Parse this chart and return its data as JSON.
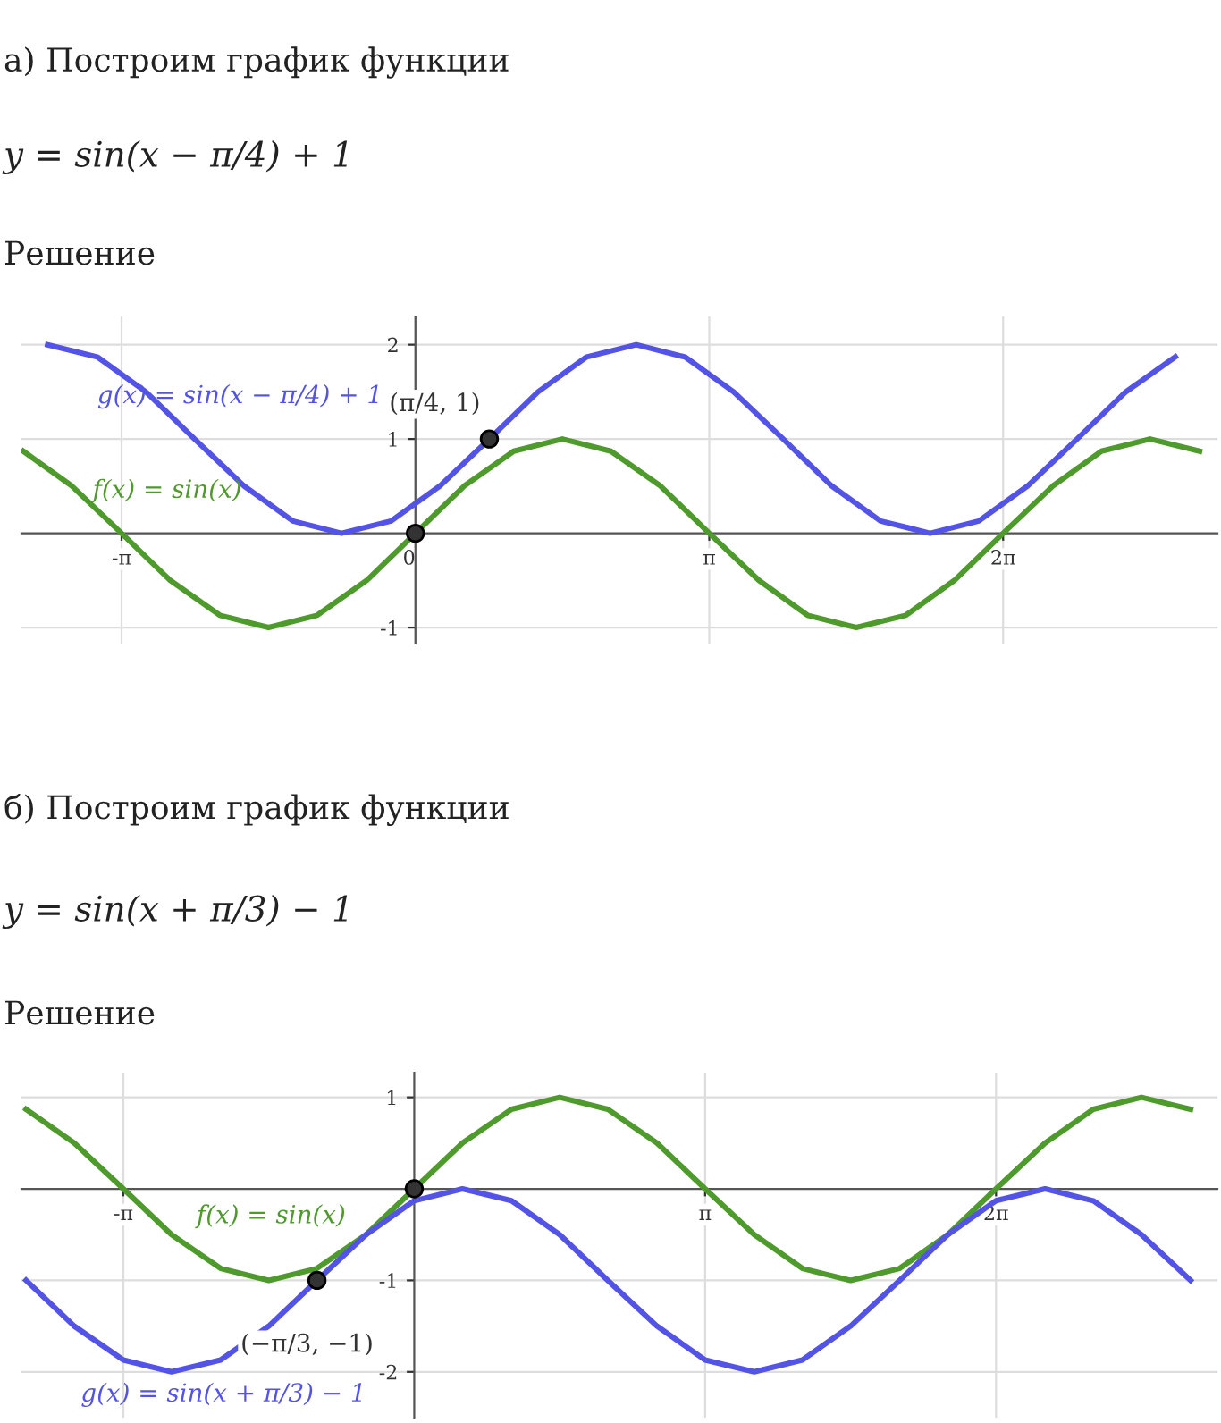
{
  "chart_data": [
    {
      "type": "line",
      "title": "а) Построим график функции",
      "subtitle": "y = sin(x − π/4) + 1",
      "annotations": [
        "Решение",
        {
          "text": "(π/4, 1)",
          "x": 0.79,
          "y": 1
        }
      ],
      "xlim": [
        -4.21,
        8.57
      ],
      "ylim": [
        -1.17,
        2.3
      ],
      "xticks": [
        {
          "value": -3.14,
          "label": "-π"
        },
        {
          "value": 0,
          "label": "0"
        },
        {
          "value": 3.14,
          "label": "π"
        },
        {
          "value": 6.28,
          "label": "2π"
        }
      ],
      "yticks": [
        -1,
        1,
        2
      ],
      "grid": true,
      "line_style": "solid",
      "series": [
        {
          "name": "g(x) = sin(x − π/4) + 1",
          "color": "#5353e6",
          "x": [
            -3.93,
            -3.4,
            -2.88,
            -2.36,
            -1.83,
            -1.31,
            -0.79,
            -0.26,
            0.26,
            0.79,
            1.31,
            1.83,
            2.36,
            2.88,
            3.4,
            3.93,
            4.45,
            4.97,
            5.5,
            6.02,
            6.54,
            7.07,
            7.59,
            8.12
          ],
          "values": [
            2,
            1.87,
            1.5,
            1,
            0.5,
            0.13,
            0,
            0.13,
            0.5,
            1,
            1.5,
            1.87,
            2,
            1.87,
            1.5,
            1,
            0.5,
            0.13,
            0,
            0.13,
            0.5,
            1,
            1.5,
            1.87
          ]
        },
        {
          "name": "f(x) = sin(x)",
          "color": "#4f9a2c",
          "x": [
            -4.19,
            -3.67,
            -3.14,
            -2.62,
            -2.09,
            -1.57,
            -1.05,
            -0.52,
            0,
            0.52,
            1.05,
            1.57,
            2.09,
            2.62,
            3.14,
            3.67,
            4.19,
            4.71,
            5.24,
            5.76,
            6.28,
            6.81,
            7.33,
            7.85,
            8.38
          ],
          "values": [
            0.87,
            0.5,
            0,
            -0.5,
            -0.87,
            -1,
            -0.87,
            -0.5,
            0,
            0.5,
            0.87,
            1,
            0.87,
            0.5,
            0,
            -0.5,
            -0.87,
            -1,
            -0.87,
            -0.5,
            0,
            0.5,
            0.87,
            1,
            0.87
          ]
        },
        {
          "type": "scatter",
          "marker": "circle",
          "color": "#333333",
          "x": [
            0,
            0.79
          ],
          "values": [
            0,
            1
          ]
        }
      ]
    },
    {
      "type": "line",
      "title": "б) Построим график функции",
      "subtitle": "y = sin(x + π/3) − 1",
      "annotations": [
        "Решение",
        {
          "text": "(−π/3, −1)",
          "x": -1.05,
          "y": -1
        }
      ],
      "xlim": [
        -4.24,
        8.67
      ],
      "ylim": [
        -2.5,
        1.27
      ],
      "xticks": [
        {
          "value": -3.14,
          "label": "-π"
        },
        {
          "value": 3.14,
          "label": "π"
        },
        {
          "value": 6.28,
          "label": "2π"
        }
      ],
      "yticks": [
        -2,
        -1,
        1
      ],
      "grid": true,
      "line_style": "solid",
      "series": [
        {
          "name": "f(x) = sin(x)",
          "color": "#4f9a2c",
          "x": [
            -4.19,
            -3.67,
            -3.14,
            -2.62,
            -2.09,
            -1.57,
            -1.05,
            -0.52,
            0,
            0.52,
            1.05,
            1.57,
            2.09,
            2.62,
            3.14,
            3.67,
            4.19,
            4.71,
            5.24,
            5.76,
            6.28,
            6.81,
            7.33,
            7.85,
            8.38
          ],
          "values": [
            0.87,
            0.5,
            0,
            -0.5,
            -0.87,
            -1,
            -0.87,
            -0.5,
            0,
            0.5,
            0.87,
            1,
            0.87,
            0.5,
            0,
            -0.5,
            -0.87,
            -1,
            -0.87,
            -0.5,
            0,
            0.5,
            0.87,
            1,
            0.87
          ]
        },
        {
          "name": "g(x) = sin(x + π/3) − 1",
          "color": "#5353e6",
          "x": [
            -4.19,
            -3.67,
            -3.14,
            -2.62,
            -2.09,
            -1.57,
            -1.05,
            -0.52,
            0,
            0.52,
            1.05,
            1.57,
            2.09,
            2.62,
            3.14,
            3.67,
            4.19,
            4.71,
            5.24,
            5.76,
            6.28,
            6.81,
            7.33,
            7.85,
            8.38
          ],
          "values": [
            -1,
            -1.5,
            -1.87,
            -2,
            -1.87,
            -1.5,
            -1,
            -0.5,
            -0.13,
            0,
            -0.13,
            -0.5,
            -1,
            -1.5,
            -1.87,
            -2,
            -1.87,
            -1.5,
            -1,
            -0.5,
            -0.13,
            0,
            -0.13,
            -0.5,
            -1
          ]
        },
        {
          "type": "scatter",
          "marker": "circle",
          "color": "#333333",
          "x": [
            0,
            -1.05
          ],
          "values": [
            0,
            -1
          ]
        }
      ]
    }
  ]
}
